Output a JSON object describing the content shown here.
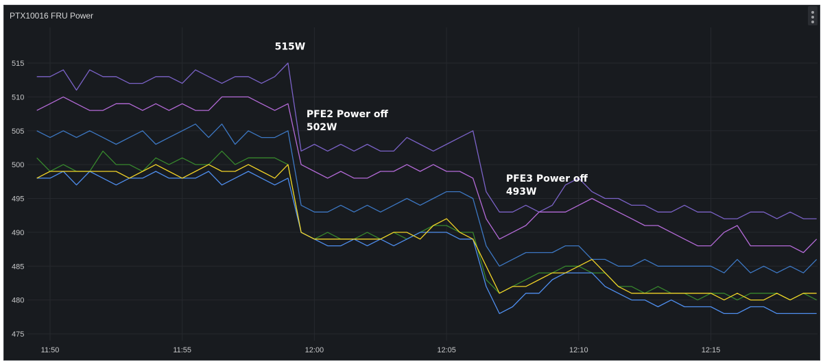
{
  "panel": {
    "title": "PTX10016 FRU Power",
    "menu_icon": "ellipsis-vertical-icon"
  },
  "chart_data": {
    "type": "line",
    "title": "PTX10016 FRU Power",
    "xlabel": "",
    "ylabel": "",
    "x_unit": "minutes after 11:49",
    "x": [
      0.5,
      1,
      1.5,
      2,
      2.5,
      3,
      3.5,
      4,
      4.5,
      5,
      5.5,
      6,
      6.5,
      7,
      7.5,
      8,
      8.5,
      9,
      9.5,
      10,
      10.5,
      11,
      11.5,
      12,
      12.5,
      13,
      13.5,
      14,
      14.5,
      15,
      15.5,
      16,
      16.5,
      17,
      17.5,
      18,
      18.5,
      19,
      19.5,
      20,
      20.5,
      21,
      21.5,
      22,
      22.5,
      23,
      23.5,
      24,
      24.5,
      25,
      25.5,
      26,
      26.5,
      27,
      27.5,
      28,
      28.5,
      29,
      29.5,
      30
    ],
    "xlim": [
      0.14,
      30.04
    ],
    "ylim": [
      473,
      519
    ],
    "grid": true,
    "yticks": [
      515,
      510,
      505,
      500,
      495,
      490,
      485,
      480,
      475
    ],
    "xticks": [
      {
        "t": 1,
        "label": "11:50"
      },
      {
        "t": 6,
        "label": "11:55"
      },
      {
        "t": 11,
        "label": "12:00"
      },
      {
        "t": 16,
        "label": "12:05"
      },
      {
        "t": 21,
        "label": "12:10"
      },
      {
        "t": 26,
        "label": "12:15"
      }
    ],
    "series": [
      {
        "color": "#7c63c9",
        "values": [
          513,
          513,
          514,
          511,
          514,
          513,
          513,
          512,
          512,
          513,
          513,
          512,
          514,
          513,
          512,
          513,
          513,
          512,
          513,
          515,
          502,
          503,
          502,
          503,
          502,
          503,
          502,
          502,
          504,
          503,
          502,
          503,
          504,
          505,
          496,
          493,
          493,
          494,
          493,
          494,
          497,
          498,
          496,
          495,
          495,
          494,
          494,
          493,
          493,
          494,
          493,
          493,
          492,
          492,
          493,
          493,
          492,
          493,
          492,
          492
        ]
      },
      {
        "color": "#b56bd9",
        "values": [
          508,
          509,
          510,
          509,
          508,
          508,
          509,
          509,
          508,
          509,
          508,
          509,
          508,
          508,
          510,
          510,
          510,
          509,
          508,
          509,
          500,
          499,
          498,
          499,
          498,
          498,
          499,
          499,
          500,
          499,
          500,
          499,
          499,
          498,
          492,
          489,
          490,
          491,
          493,
          493,
          493,
          494,
          495,
          494,
          493,
          492,
          491,
          491,
          490,
          489,
          488,
          488,
          490,
          491,
          488,
          488,
          488,
          488,
          487,
          489
        ]
      },
      {
        "color": "#3d78c4",
        "values": [
          505,
          504,
          505,
          504,
          505,
          504,
          503,
          504,
          505,
          503,
          504,
          505,
          506,
          504,
          506,
          503,
          505,
          504,
          504,
          505,
          494,
          493,
          493,
          494,
          493,
          494,
          493,
          494,
          495,
          494,
          495,
          496,
          496,
          495,
          488,
          485,
          486,
          487,
          487,
          487,
          488,
          488,
          486,
          486,
          485,
          485,
          486,
          485,
          485,
          485,
          485,
          485,
          484,
          486,
          484,
          485,
          484,
          485,
          484,
          486
        ]
      },
      {
        "color": "#37872d",
        "values": [
          501,
          499,
          500,
          499,
          499,
          502,
          500,
          500,
          499,
          501,
          500,
          501,
          500,
          500,
          502,
          500,
          501,
          501,
          501,
          500,
          490,
          489,
          490,
          489,
          489,
          490,
          489,
          490,
          489,
          490,
          491,
          491,
          490,
          490,
          483,
          481,
          482,
          483,
          484,
          484,
          485,
          485,
          484,
          484,
          482,
          482,
          481,
          482,
          481,
          481,
          480,
          481,
          481,
          480,
          481,
          481,
          481,
          480,
          481,
          480
        ]
      },
      {
        "color": "#4f8ff0",
        "values": [
          498,
          498,
          499,
          497,
          499,
          498,
          497,
          498,
          498,
          499,
          498,
          498,
          498,
          499,
          497,
          498,
          499,
          498,
          497,
          498,
          490,
          489,
          488,
          488,
          489,
          488,
          489,
          488,
          489,
          490,
          490,
          490,
          489,
          489,
          482,
          478,
          479,
          481,
          481,
          483,
          484,
          484,
          484,
          482,
          481,
          480,
          480,
          479,
          480,
          479,
          479,
          479,
          478,
          478,
          479,
          479,
          478,
          478,
          478,
          478
        ]
      },
      {
        "color": "#f2d327",
        "values": [
          498,
          499,
          499,
          499,
          499,
          499,
          499,
          498,
          499,
          500,
          499,
          498,
          499,
          500,
          499,
          499,
          500,
          499,
          498,
          500,
          490,
          489,
          489,
          489,
          489,
          489,
          489,
          490,
          490,
          489,
          491,
          492,
          490,
          489,
          485,
          481,
          482,
          482,
          483,
          484,
          484,
          485,
          486,
          484,
          482,
          481,
          481,
          481,
          481,
          481,
          481,
          481,
          480,
          481,
          480,
          480,
          481,
          480,
          481,
          481
        ]
      }
    ],
    "annotations": [
      {
        "lines": [
          "515W"
        ],
        "t": 9.5,
        "v": 517
      },
      {
        "lines": [
          "PFE2 Power off",
          "502W"
        ],
        "t": 10.7,
        "v": 507
      },
      {
        "lines": [
          "PFE3 Power off",
          "493W"
        ],
        "t": 18.25,
        "v": 497.5
      }
    ]
  }
}
